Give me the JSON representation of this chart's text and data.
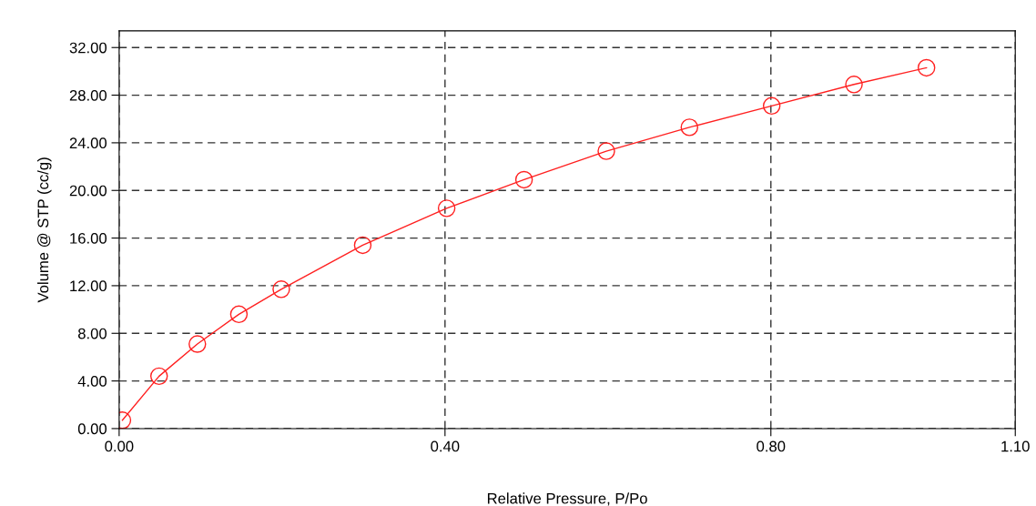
{
  "chart_data": {
    "type": "line",
    "xlabel": "Relative Pressure, P/Po",
    "ylabel": "Volume @ STP (cc/g)",
    "x": [
      0.004,
      0.049,
      0.096,
      0.147,
      0.199,
      0.299,
      0.402,
      0.497,
      0.598,
      0.7,
      0.801,
      0.902,
      0.991
    ],
    "series": [
      {
        "color": "#ff2020",
        "values": [
          0.7,
          4.4,
          7.1,
          9.6,
          11.7,
          15.4,
          18.5,
          20.9,
          23.3,
          25.3,
          27.1,
          28.9,
          30.3
        ]
      }
    ],
    "xlim": [
      0,
      1.1
    ],
    "xticks": [
      {
        "value": 0,
        "label": "0.00"
      },
      {
        "value": 0.4,
        "label": "0.40"
      },
      {
        "value": 0.8,
        "label": "0.80"
      },
      {
        "value": 1.1,
        "label": "1.10"
      }
    ],
    "ylim": [
      0,
      33.4
    ],
    "yticks": [
      {
        "value": 0,
        "label": "0.00"
      },
      {
        "value": 4,
        "label": "4.00"
      },
      {
        "value": 8,
        "label": "8.00"
      },
      {
        "value": 12,
        "label": "12.00"
      },
      {
        "value": 16,
        "label": "16.00"
      },
      {
        "value": 20,
        "label": "20.00"
      },
      {
        "value": 24,
        "label": "24.00"
      },
      {
        "value": 28,
        "label": "28.00"
      },
      {
        "value": 32,
        "label": "32.00"
      }
    ],
    "grid": true,
    "marker": "circle",
    "line_style": "solid"
  }
}
